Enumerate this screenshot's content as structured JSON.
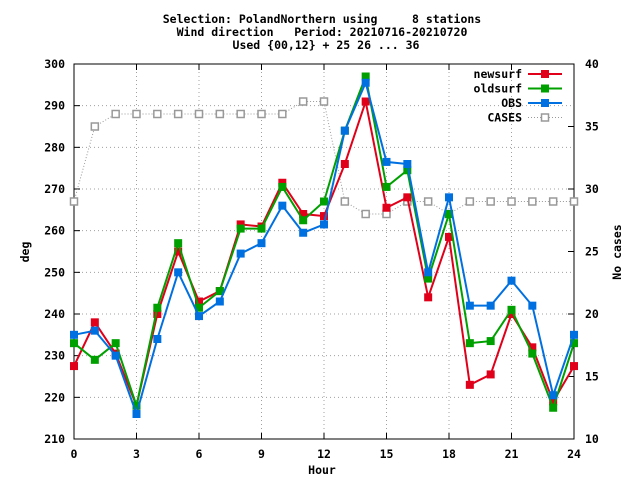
{
  "chart_data": {
    "type": "line",
    "title_lines": [
      "Selection: PolandNorthern using     8 stations",
      "Wind direction   Period: 20210716-20210720",
      "Used {00,12} + 25 26 ... 36"
    ],
    "xlabel": "Hour",
    "ylabel": "deg",
    "y2label": "No cases",
    "xlim": [
      0,
      24
    ],
    "ylim": [
      210,
      300
    ],
    "y2lim": [
      10,
      40
    ],
    "xticks": [
      "0",
      "3",
      "6",
      "9",
      "12",
      "15",
      "18",
      "21",
      "24"
    ],
    "yticks": [
      "210",
      "220",
      "230",
      "240",
      "250",
      "260",
      "270",
      "280",
      "290",
      "300"
    ],
    "y2ticks": [
      "10",
      "15",
      "20",
      "25",
      "30",
      "35",
      "40"
    ],
    "grid": true,
    "legend_position": "top-right",
    "x": [
      0,
      1,
      2,
      3,
      4,
      5,
      6,
      7,
      8,
      9,
      10,
      11,
      12,
      13,
      14,
      15,
      16,
      17,
      18,
      19,
      20,
      21,
      22,
      23,
      24
    ],
    "series": [
      {
        "name": "newsurf",
        "color": "#e0001a",
        "marker": "filled-square",
        "axis": "y",
        "values": [
          227.5,
          238,
          230.5,
          218,
          240,
          255,
          243,
          245.5,
          261.5,
          261,
          271.5,
          264,
          263.5,
          276,
          291,
          265.5,
          268,
          244,
          258.5,
          223,
          225.5,
          240,
          232,
          219,
          227.5
        ]
      },
      {
        "name": "oldsurf",
        "color": "#00a000",
        "marker": "filled-square",
        "axis": "y",
        "values": [
          233,
          229,
          233,
          218,
          241.5,
          257,
          241.5,
          245.5,
          260.5,
          260.5,
          270.5,
          262.5,
          267,
          284,
          297,
          270.5,
          274.5,
          248.5,
          264,
          233,
          233.5,
          241,
          230.5,
          217.5,
          233
        ]
      },
      {
        "name": "OBS",
        "color": "#0070e0",
        "marker": "filled-square",
        "axis": "y",
        "values": [
          235,
          236,
          230,
          216,
          234,
          250,
          239.5,
          243,
          254.5,
          257,
          266,
          259.5,
          261.5,
          284,
          295.5,
          276.5,
          276,
          250,
          268,
          242,
          242,
          248,
          242,
          220.5,
          235
        ]
      },
      {
        "name": "CASES",
        "color": "#999999",
        "marker": "open-square",
        "dash": "dotted",
        "axis": "y2",
        "values": [
          29,
          35,
          36,
          36,
          36,
          36,
          36,
          36,
          36,
          36,
          36,
          37,
          37,
          29,
          28,
          28,
          29,
          29,
          28,
          29,
          29,
          29,
          29,
          29,
          29
        ]
      }
    ]
  }
}
